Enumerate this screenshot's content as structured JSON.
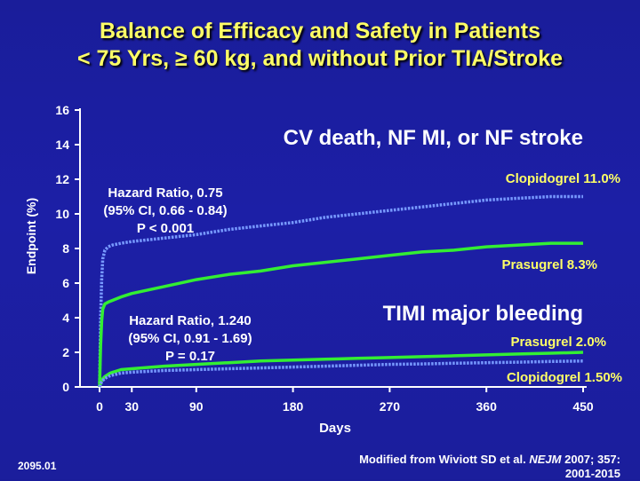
{
  "title": {
    "line1": "Balance of Efficacy and Safety in Patients",
    "line2": "< 75 Yrs, ≥ 60 kg, and without Prior TIA/Stroke"
  },
  "footer": {
    "slide_code": "2095.01",
    "citation_prefix": "Modified from Wiviott SD et al. ",
    "citation_journal": "NEJM",
    "citation_suffix": " 2007; 357:",
    "citation_line2": "2001-2015"
  },
  "colors": {
    "background": "#1c1fa6",
    "title": "#ffff66",
    "prasugrel": "#33ee33",
    "clopidogrel": "#7799ff",
    "text": "#ffffff"
  },
  "chart_data": {
    "type": "line",
    "xlabel": "Days",
    "ylabel": "Endpoint (%)",
    "xlim": [
      0,
      450
    ],
    "ylim": [
      0,
      16
    ],
    "x_ticks": [
      0,
      30,
      90,
      180,
      270,
      360,
      450
    ],
    "y_ticks": [
      0,
      2,
      4,
      6,
      8,
      10,
      12,
      14,
      16
    ],
    "grid": false,
    "panels": [
      {
        "label": "CV death, NF MI, or NF stroke",
        "annotation": [
          "Hazard Ratio, 0.75",
          "(95% CI, 0.66 - 0.84)",
          "P < 0.001"
        ],
        "series": [
          {
            "name": "Clopidogrel 11.0%",
            "style": "dotted",
            "x": [
              0,
              1,
              2,
              3,
              5,
              8,
              12,
              20,
              30,
              60,
              90,
              120,
              150,
              180,
              210,
              240,
              270,
              300,
              330,
              360,
              390,
              420,
              450
            ],
            "y": [
              0,
              4.0,
              6.2,
              7.4,
              7.9,
              8.1,
              8.2,
              8.3,
              8.4,
              8.6,
              8.8,
              9.1,
              9.3,
              9.5,
              9.8,
              10.0,
              10.2,
              10.4,
              10.6,
              10.8,
              10.9,
              11.0,
              11.0
            ]
          },
          {
            "name": "Prasugrel 8.3%",
            "style": "solid",
            "x": [
              0,
              1,
              2,
              3,
              5,
              8,
              12,
              20,
              30,
              60,
              90,
              120,
              150,
              180,
              210,
              240,
              270,
              300,
              330,
              360,
              390,
              420,
              450
            ],
            "y": [
              0,
              2.4,
              3.8,
              4.5,
              4.8,
              4.9,
              5.0,
              5.2,
              5.4,
              5.8,
              6.2,
              6.5,
              6.7,
              7.0,
              7.2,
              7.4,
              7.6,
              7.8,
              7.9,
              8.1,
              8.2,
              8.3,
              8.3
            ]
          }
        ]
      },
      {
        "label": "TIMI major bleeding",
        "annotation": [
          "Hazard Ratio, 1.240",
          "(95% CI, 0.91 - 1.69)",
          "P = 0.17"
        ],
        "series": [
          {
            "name": "Prasugrel 2.0%",
            "style": "solid",
            "x": [
              0,
              2,
              5,
              10,
              20,
              30,
              60,
              90,
              120,
              150,
              180,
              210,
              240,
              270,
              300,
              330,
              360,
              390,
              420,
              450
            ],
            "y": [
              0,
              0.4,
              0.6,
              0.8,
              1.0,
              1.05,
              1.2,
              1.3,
              1.4,
              1.5,
              1.55,
              1.6,
              1.65,
              1.7,
              1.75,
              1.8,
              1.85,
              1.9,
              1.95,
              2.0
            ]
          },
          {
            "name": "Clopidogrel 1.50%",
            "style": "dotted",
            "x": [
              0,
              2,
              5,
              10,
              20,
              30,
              60,
              90,
              120,
              150,
              180,
              210,
              240,
              270,
              300,
              330,
              360,
              390,
              420,
              450
            ],
            "y": [
              0,
              0.3,
              0.5,
              0.65,
              0.8,
              0.85,
              0.95,
              1.0,
              1.05,
              1.1,
              1.15,
              1.2,
              1.25,
              1.3,
              1.33,
              1.37,
              1.4,
              1.43,
              1.47,
              1.5
            ]
          }
        ]
      }
    ]
  }
}
